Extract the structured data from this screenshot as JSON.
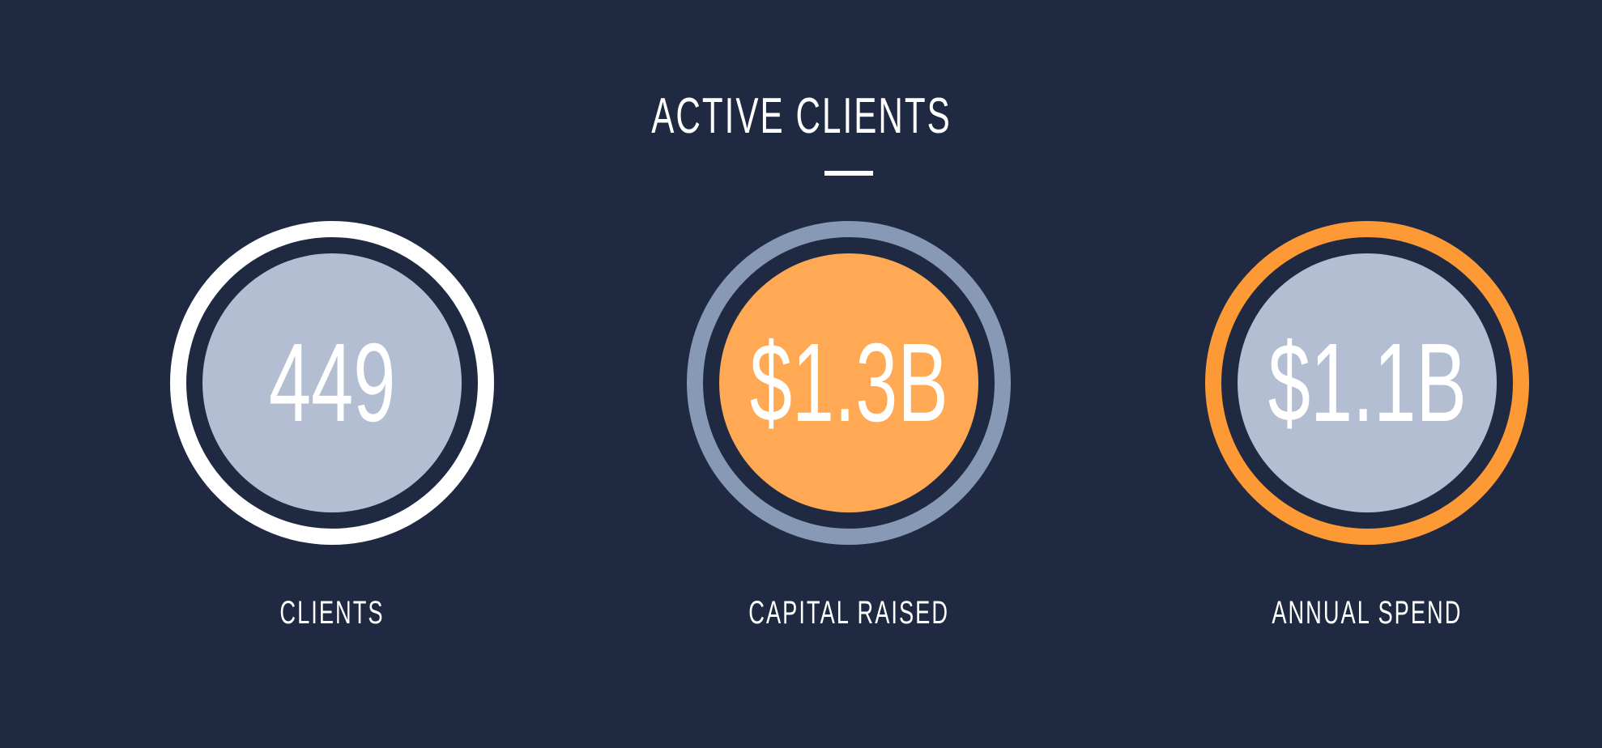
{
  "title": "ACTIVE CLIENTS",
  "stats": [
    {
      "value": "449",
      "label": "CLIENTS",
      "ring_color": "#ffffff",
      "fill_color": "#b4bed3"
    },
    {
      "value": "$1.3B",
      "label": "CAPITAL RAISED",
      "ring_color": "#8799b5",
      "fill_color": "#ffa955"
    },
    {
      "value": "$1.1B",
      "label": "ANNUAL SPEND",
      "ring_color": "#fd9a35",
      "fill_color": "#b4bed3"
    }
  ]
}
